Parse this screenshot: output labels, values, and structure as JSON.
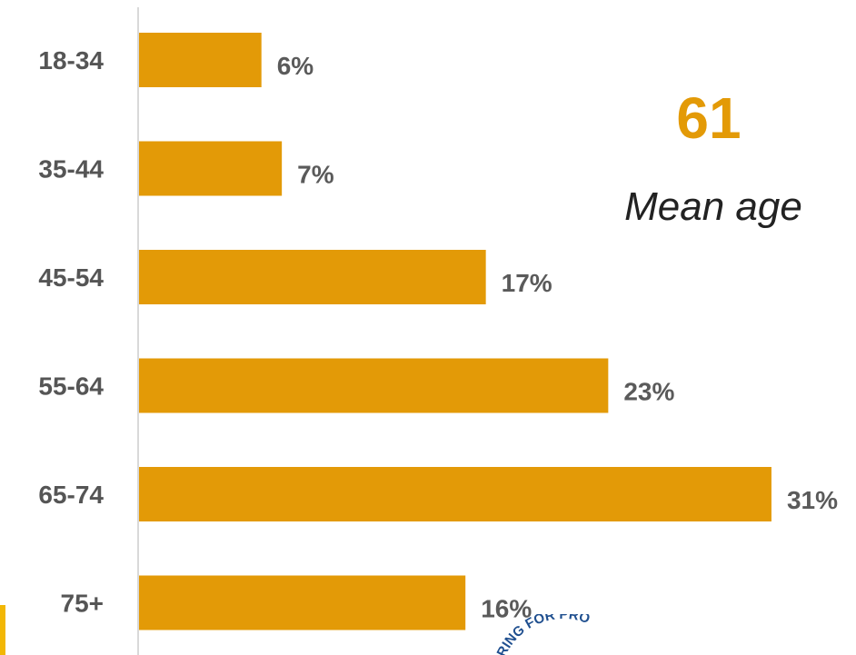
{
  "chart_data": {
    "type": "bar",
    "orientation": "horizontal",
    "categories": [
      "18-34",
      "35-44",
      "45-54",
      "55-64",
      "65-74",
      "75+"
    ],
    "values": [
      6,
      7,
      17,
      23,
      31,
      16
    ],
    "value_labels": [
      "6%",
      "7%",
      "17%",
      "23%",
      "31%",
      "16%"
    ],
    "unit": "%",
    "xlim": [
      0,
      31
    ],
    "grid": false,
    "bar_color": "#e39a07",
    "title": "",
    "xlabel": "",
    "ylabel": ""
  },
  "callout": {
    "value": "61",
    "label": "Mean age",
    "color": "#e39a07"
  },
  "seal": {
    "text": "ERING FOR PRO",
    "color": "#1f4f8f"
  },
  "accent_color": "#f2b705"
}
